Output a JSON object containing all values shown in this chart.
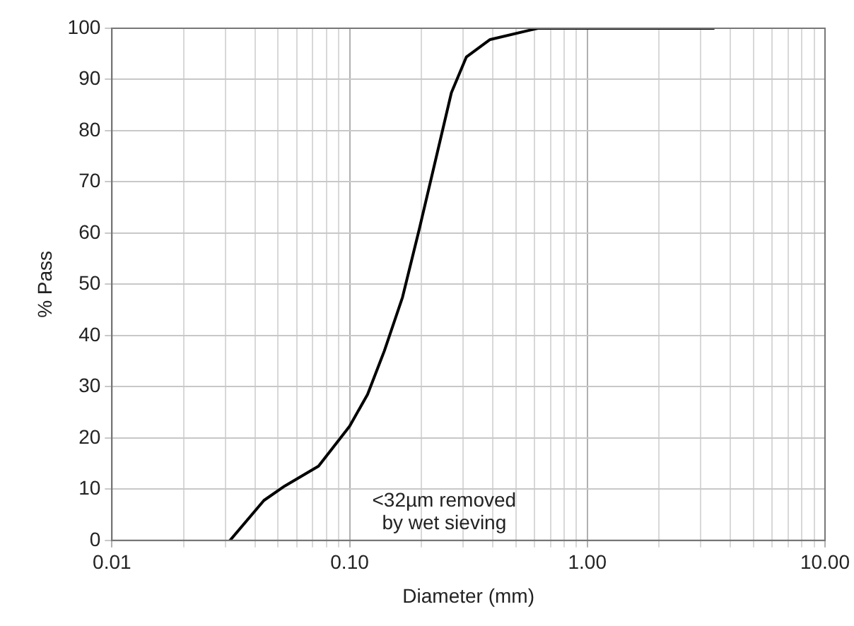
{
  "chart_data": {
    "type": "line",
    "xlabel": "Diameter (mm)",
    "ylabel": "% Pass",
    "log": "x",
    "grid": true,
    "legend": false,
    "marker": "none",
    "line_style": "solid",
    "x": [
      0.0314,
      0.0436,
      0.0533,
      0.074,
      0.1,
      0.119,
      0.14,
      0.167,
      0.196,
      0.233,
      0.268,
      0.31,
      0.39,
      0.57,
      0.62,
      3.4
    ],
    "series": [
      {
        "color": "#000000",
        "values": [
          0,
          7.8,
          10.6,
          14.5,
          22.3,
          28.5,
          37,
          47.5,
          60.6,
          75.4,
          87.4,
          94.4,
          97.8,
          99.6,
          100,
          100
        ]
      }
    ],
    "xlim": [
      0.01,
      10
    ],
    "ylim": [
      0,
      100
    ],
    "xticks": [
      {
        "value": 0.01,
        "label": "0.01"
      },
      {
        "value": 0.02,
        "label": null
      },
      {
        "value": 0.03,
        "label": null
      },
      {
        "value": 0.04,
        "label": null
      },
      {
        "value": 0.05,
        "label": null
      },
      {
        "value": 0.06,
        "label": null
      },
      {
        "value": 0.07,
        "label": null
      },
      {
        "value": 0.08,
        "label": null
      },
      {
        "value": 0.09,
        "label": null
      },
      {
        "value": 0.1,
        "label": "0.10"
      },
      {
        "value": 0.2,
        "label": null
      },
      {
        "value": 0.3,
        "label": null
      },
      {
        "value": 0.4,
        "label": null
      },
      {
        "value": 0.5,
        "label": null
      },
      {
        "value": 0.6,
        "label": null
      },
      {
        "value": 0.7,
        "label": null
      },
      {
        "value": 0.8,
        "label": null
      },
      {
        "value": 0.9,
        "label": null
      },
      {
        "value": 1,
        "label": "1.00"
      },
      {
        "value": 2,
        "label": null
      },
      {
        "value": 3,
        "label": null
      },
      {
        "value": 4,
        "label": null
      },
      {
        "value": 5,
        "label": null
      },
      {
        "value": 6,
        "label": null
      },
      {
        "value": 7,
        "label": null
      },
      {
        "value": 8,
        "label": null
      },
      {
        "value": 9,
        "label": null
      },
      {
        "value": 10,
        "label": "10.00"
      }
    ],
    "yticks": [
      0,
      10,
      20,
      30,
      40,
      50,
      60,
      70,
      80,
      90,
      100
    ],
    "annotations": [
      "<32µm removed\nby wet sieving"
    ]
  }
}
